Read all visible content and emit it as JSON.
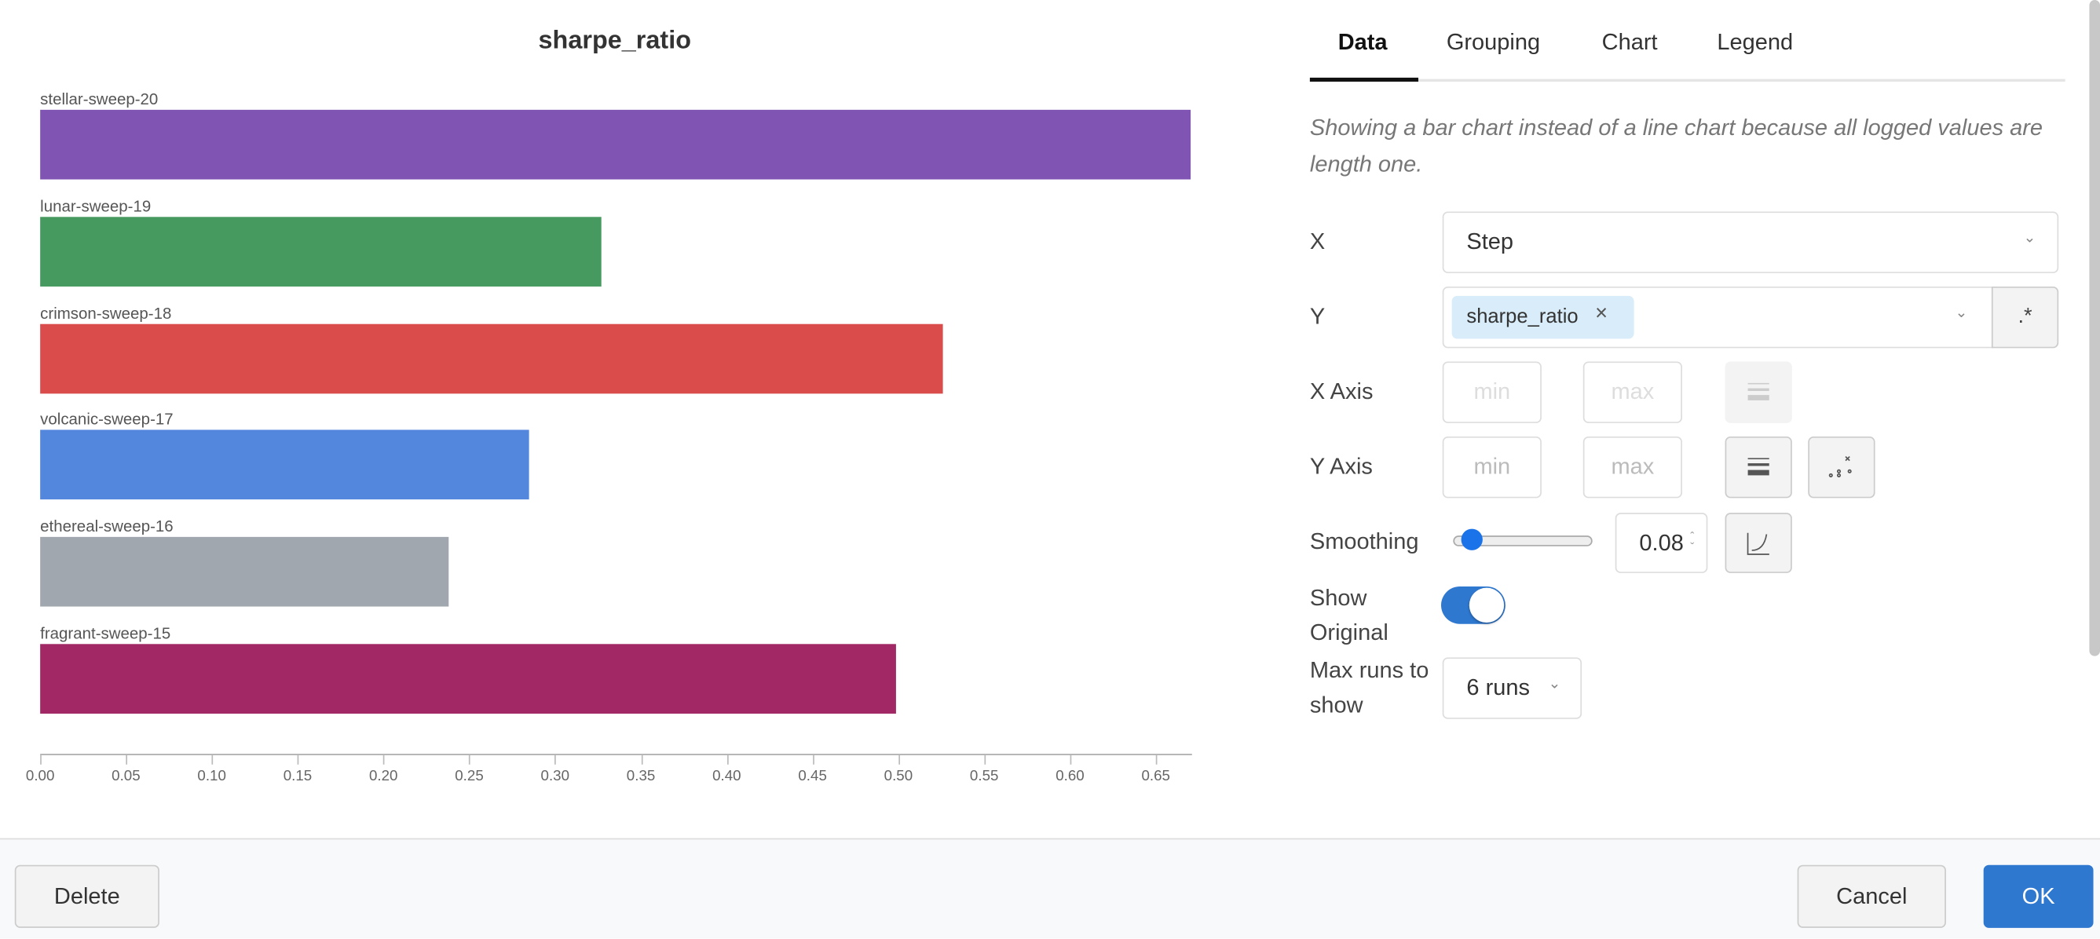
{
  "chart_data": {
    "type": "bar",
    "orientation": "horizontal",
    "title": "sharpe_ratio",
    "categories": [
      "stellar-sweep-20",
      "lunar-sweep-19",
      "crimson-sweep-18",
      "volcanic-sweep-17",
      "ethereal-sweep-16",
      "fragrant-sweep-15"
    ],
    "values": [
      0.67,
      0.327,
      0.526,
      0.285,
      0.238,
      0.499
    ],
    "colors": [
      "#7f54b3",
      "#479a5f",
      "#da4c4c",
      "#5387dd",
      "#a0a7ae",
      "#a12864"
    ],
    "xlim": [
      0,
      0.67
    ],
    "xticks": [
      "0.00",
      "0.05",
      "0.10",
      "0.15",
      "0.20",
      "0.25",
      "0.30",
      "0.35",
      "0.40",
      "0.45",
      "0.50",
      "0.55",
      "0.60",
      "0.65"
    ],
    "grid": false
  },
  "tabs": [
    "Data",
    "Grouping",
    "Chart",
    "Legend"
  ],
  "active_tab": "Data",
  "note": "Showing a bar chart instead of a line chart because all logged values are length one.",
  "form": {
    "x_label": "X",
    "x_value": "Step",
    "y_label": "Y",
    "y_tag": "sharpe_ratio",
    "regex_label": ".*",
    "x_axis_label": "X Axis",
    "y_axis_label": "Y Axis",
    "min_placeholder": "min",
    "max_placeholder": "max",
    "smoothing_label": "Smoothing",
    "smoothing_value": "0.08",
    "smoothing_slider": 0.08,
    "show_original_label": "Show Original",
    "show_original": true,
    "max_runs_label": "Max runs to show",
    "max_runs_value": "6 runs"
  },
  "footer": {
    "delete": "Delete",
    "cancel": "Cancel",
    "ok": "OK"
  },
  "accent": "#2f78d0"
}
